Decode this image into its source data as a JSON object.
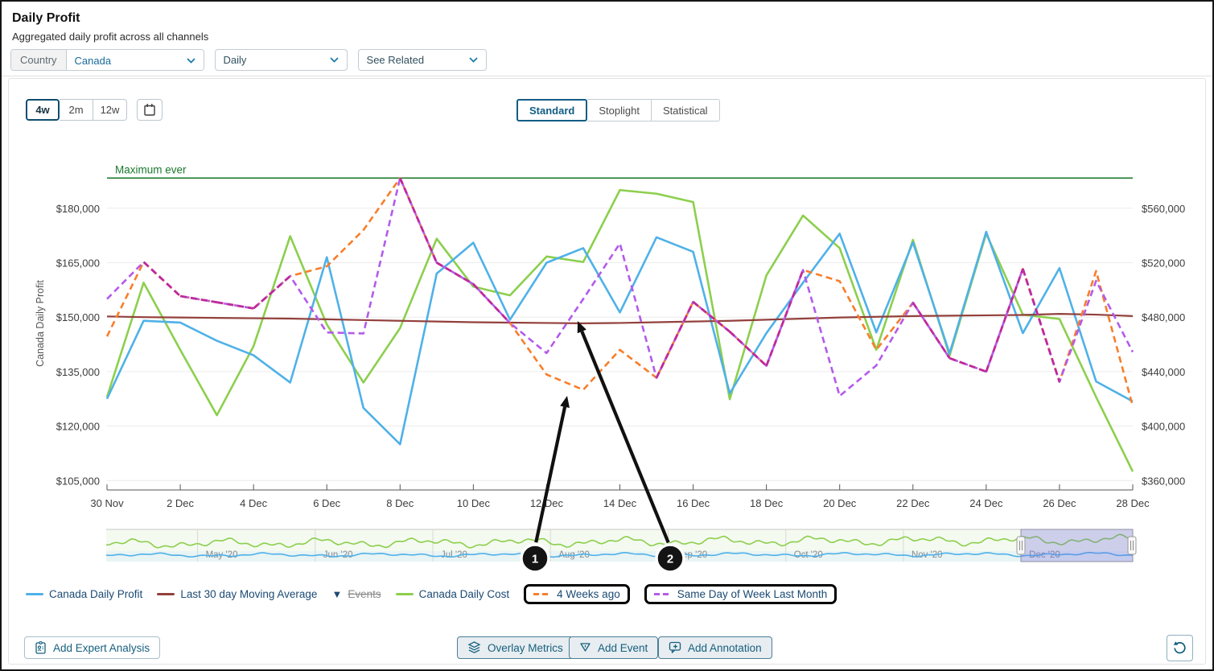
{
  "header": {
    "title": "Daily Profit",
    "subtitle": "Aggregated daily profit across all channels"
  },
  "filters": {
    "country_label": "Country",
    "country_value": "Canada",
    "granularity_value": "Daily",
    "see_related_label": "See Related"
  },
  "time_ranges": {
    "options": [
      "4w",
      "2m",
      "12w"
    ],
    "selected": "4w"
  },
  "view_tabs": {
    "options": [
      "Standard",
      "Stoplight",
      "Statistical"
    ],
    "selected": "Standard"
  },
  "chart_data": {
    "type": "line",
    "title": "Daily Profit",
    "dates": [
      "30 Nov",
      "1 Dec",
      "2 Dec",
      "3 Dec",
      "4 Dec",
      "5 Dec",
      "6 Dec",
      "7 Dec",
      "8 Dec",
      "9 Dec",
      "10 Dec",
      "11 Dec",
      "12 Dec",
      "13 Dec",
      "14 Dec",
      "15 Dec",
      "16 Dec",
      "17 Dec",
      "18 Dec",
      "19 Dec",
      "20 Dec",
      "21 Dec",
      "22 Dec",
      "23 Dec",
      "24 Dec",
      "25 Dec",
      "26 Dec",
      "27 Dec",
      "28 Dec"
    ],
    "x_tick_every": 2,
    "left_axis": {
      "title": "Canada Daily Profit",
      "tick_labels": [
        "$105,000",
        "$120,000",
        "$135,000",
        "$150,000",
        "$165,000",
        "$180,000"
      ],
      "range": [
        105000,
        188300
      ]
    },
    "right_axis": {
      "tick_labels": [
        "$360,000",
        "$400,000",
        "$440,000",
        "$480,000",
        "$520,000",
        "$560,000"
      ]
    },
    "max_ever": {
      "label": "Maximum ever",
      "value": 188300,
      "color": "#1a7a2e"
    },
    "series": [
      {
        "name": "Canada Daily Profit",
        "color": "#4FB1E8",
        "style": "solid",
        "values": [
          127500,
          149000,
          148500,
          143500,
          139500,
          132000,
          166500,
          125000,
          115000,
          162000,
          170500,
          149300,
          165000,
          169000,
          151300,
          172000,
          168000,
          129000,
          145600,
          159500,
          173000,
          145800,
          170600,
          140000,
          173500,
          145600,
          163500,
          132300,
          126800
        ]
      },
      {
        "name": "Canada Daily Cost",
        "color": "#8CCF4D",
        "style": "solid",
        "values": [
          128000,
          159500,
          141000,
          123000,
          142000,
          172300,
          148000,
          132000,
          147000,
          171600,
          158400,
          156000,
          166700,
          165200,
          185000,
          184000,
          181700,
          127400,
          161500,
          178000,
          169000,
          141000,
          171300,
          139400,
          173000,
          150700,
          149500,
          128000,
          107500
        ]
      },
      {
        "name": "Last 30 day Moving Average",
        "color": "#93403C",
        "style": "solid",
        "values": [
          150200,
          150000,
          149900,
          149800,
          149700,
          149600,
          149400,
          149200,
          149000,
          148800,
          148600,
          148500,
          148400,
          148300,
          148400,
          148600,
          148800,
          149000,
          149300,
          149600,
          149900,
          150100,
          150300,
          150400,
          150500,
          150600,
          150900,
          150700,
          150300
        ]
      },
      {
        "name": "4 Weeks ago",
        "color": "#F87E2B",
        "style": "dashed",
        "values": [
          144700,
          165200,
          155800,
          154100,
          152400,
          161300,
          164000,
          174000,
          188300,
          165000,
          159100,
          148400,
          134200,
          130000,
          141000,
          133300,
          154200,
          146000,
          136600,
          163000,
          159900,
          141000,
          154000,
          138700,
          135000,
          163300,
          132200,
          162700,
          125500
        ]
      },
      {
        "name": "Same Day of Week Last Month",
        "color": "#B35BEB",
        "style": "dashed",
        "values": [
          155000,
          165200,
          155800,
          154100,
          152400,
          161300,
          145800,
          145500,
          188300,
          165000,
          159100,
          148400,
          140100,
          155000,
          170300,
          133300,
          154200,
          146000,
          136600,
          163000,
          128300,
          136700,
          154000,
          138700,
          135000,
          163300,
          132200,
          160000,
          140400
        ]
      }
    ],
    "overlap_color": "#BE2A9B",
    "legend_position": "bottom"
  },
  "minimap": {
    "months": [
      "May '20",
      "Jun '20",
      "Jul '20",
      "Aug '20",
      "Sep '20",
      "Oct '20",
      "Nov '20",
      "Dec '20"
    ],
    "selected_label": "Dec '20"
  },
  "legend": {
    "items": [
      {
        "label": "Canada Daily Profit",
        "color": "#4FB1E8",
        "style": "line",
        "boxed": false,
        "strikethrough": false
      },
      {
        "label": "Last 30 day Moving Average",
        "color": "#93403C",
        "style": "line",
        "boxed": false,
        "strikethrough": false
      },
      {
        "label": "Events",
        "color": "#1b4a73",
        "style": "triangle",
        "boxed": false,
        "strikethrough": true
      },
      {
        "label": "Canada Daily Cost",
        "color": "#8CCF4D",
        "style": "line",
        "boxed": false,
        "strikethrough": false
      },
      {
        "label": "4 Weeks ago",
        "color": "#F87E2B",
        "style": "dash",
        "boxed": true,
        "strikethrough": false
      },
      {
        "label": "Same Day of Week Last Month",
        "color": "#B35BEB",
        "style": "dash",
        "boxed": true,
        "strikethrough": false
      }
    ]
  },
  "callouts": [
    {
      "label": "1",
      "circle": [
        663,
        692
      ],
      "tip": [
        703,
        490
      ]
    },
    {
      "label": "2",
      "circle": [
        831,
        692
      ],
      "tip": [
        716,
        397
      ]
    }
  ],
  "footer": {
    "add_expert_label": "Add Expert Analysis",
    "overlay_metrics_label": "Overlay Metrics",
    "add_event_label": "Add Event",
    "add_annotation_label": "Add Annotation"
  }
}
